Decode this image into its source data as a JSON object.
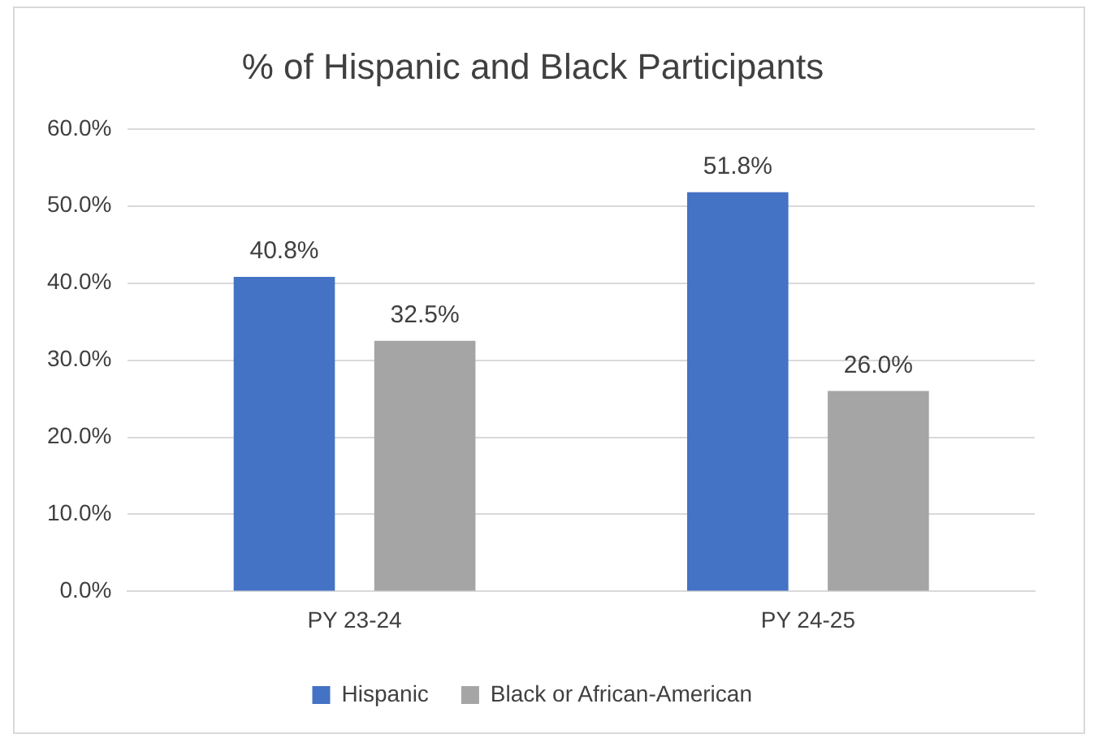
{
  "chart_data": {
    "type": "bar",
    "title": "% of Hispanic and Black Participants",
    "categories": [
      "PY 23-24",
      "PY 24-25"
    ],
    "series": [
      {
        "name": "Hispanic",
        "color": "#4472c4",
        "values": [
          40.8,
          51.8
        ],
        "value_labels": [
          "40.8%",
          "51.8%"
        ]
      },
      {
        "name": "Black or African-American",
        "color": "#a5a5a5",
        "values": [
          32.5,
          26.0
        ],
        "value_labels": [
          "32.5%",
          "26.0%"
        ]
      }
    ],
    "ylim": [
      0,
      60
    ],
    "yticks": [
      {
        "value": 0,
        "label": "0.0%"
      },
      {
        "value": 10,
        "label": "10.0%"
      },
      {
        "value": 20,
        "label": "20.0%"
      },
      {
        "value": 30,
        "label": "30.0%"
      },
      {
        "value": 40,
        "label": "40.0%"
      },
      {
        "value": 50,
        "label": "50.0%"
      },
      {
        "value": 60,
        "label": "60.0%"
      }
    ],
    "grid": "y",
    "legend": "bottom"
  }
}
